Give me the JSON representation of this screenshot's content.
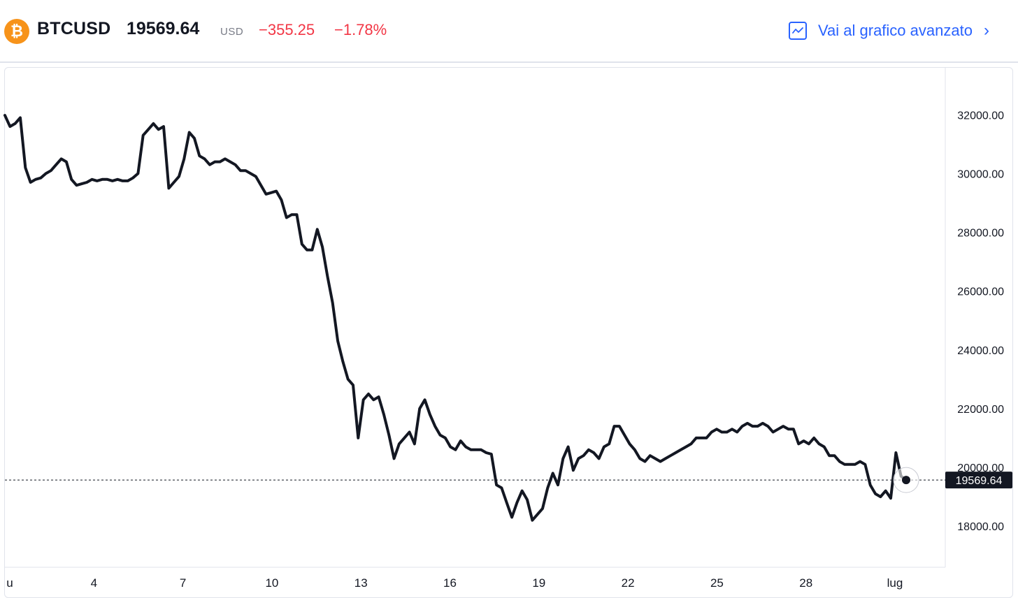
{
  "header": {
    "coin_glyph": "₿",
    "symbol": "BTCUSD",
    "price": "19569.64",
    "currency": "USD",
    "change": "−355.25",
    "change_percent": "−1.78%",
    "advanced_link": "Vai al grafico avanzato",
    "coin_color": "#f7931a",
    "negative_color": "#f23645",
    "link_color": "#2962ff"
  },
  "chart_data": {
    "type": "line",
    "x_tick_labels": [
      "u",
      "4",
      "7",
      "10",
      "13",
      "16",
      "19",
      "22",
      "25",
      "28",
      "lug"
    ],
    "y_tick_labels": [
      "32000.00",
      "30000.00",
      "28000.00",
      "26000.00",
      "24000.00",
      "22000.00",
      "20000.00",
      "18000.00"
    ],
    "ylim": [
      16600,
      33600
    ],
    "last_value_label": "19569.64",
    "line_color": "#131722",
    "series": [
      {
        "values": [
          31980,
          31600,
          31700,
          31900,
          30200,
          29700,
          29800,
          29850,
          30000,
          30100,
          30300,
          30500,
          30400,
          29800,
          29600,
          29650,
          29700,
          29800,
          29750,
          29800,
          29800,
          29750,
          29800,
          29750,
          29750,
          29850,
          30000,
          31300,
          31500,
          31700,
          31500,
          31600,
          29500,
          29700,
          29900,
          30500,
          31400,
          31200,
          30600,
          30500,
          30300,
          30400,
          30400,
          30500,
          30400,
          30300,
          30100,
          30100,
          30000,
          29900,
          29600,
          29300,
          29350,
          29400,
          29100,
          28500,
          28600,
          28600,
          27600,
          27400,
          27400,
          28100,
          27500,
          26500,
          25600,
          24300,
          23600,
          23000,
          22800,
          21000,
          22300,
          22500,
          22300,
          22400,
          21800,
          21100,
          20300,
          20800,
          21000,
          21200,
          20800,
          22000,
          22300,
          21800,
          21400,
          21100,
          21000,
          20700,
          20600,
          20900,
          20700,
          20600,
          20600,
          20600,
          20500,
          20450,
          19400,
          19300,
          18800,
          18300,
          18800,
          19200,
          18900,
          18200,
          18400,
          18600,
          19300,
          19800,
          19400,
          20300,
          20700,
          19900,
          20300,
          20400,
          20600,
          20500,
          20300,
          20700,
          20800,
          21400,
          21400,
          21100,
          20800,
          20600,
          20300,
          20200,
          20400,
          20300,
          20200,
          20300,
          20400,
          20500,
          20600,
          20700,
          20800,
          21000,
          21000,
          21000,
          21200,
          21300,
          21200,
          21200,
          21300,
          21200,
          21400,
          21500,
          21400,
          21400,
          21500,
          21400,
          21200,
          21300,
          21400,
          21300,
          21300,
          20800,
          20900,
          20800,
          21000,
          20800,
          20700,
          20400,
          20400,
          20200,
          20100,
          20100,
          20100,
          20200,
          20100,
          19400,
          19100,
          19000,
          19200,
          18950,
          20500,
          19700,
          19569.64
        ]
      }
    ]
  }
}
